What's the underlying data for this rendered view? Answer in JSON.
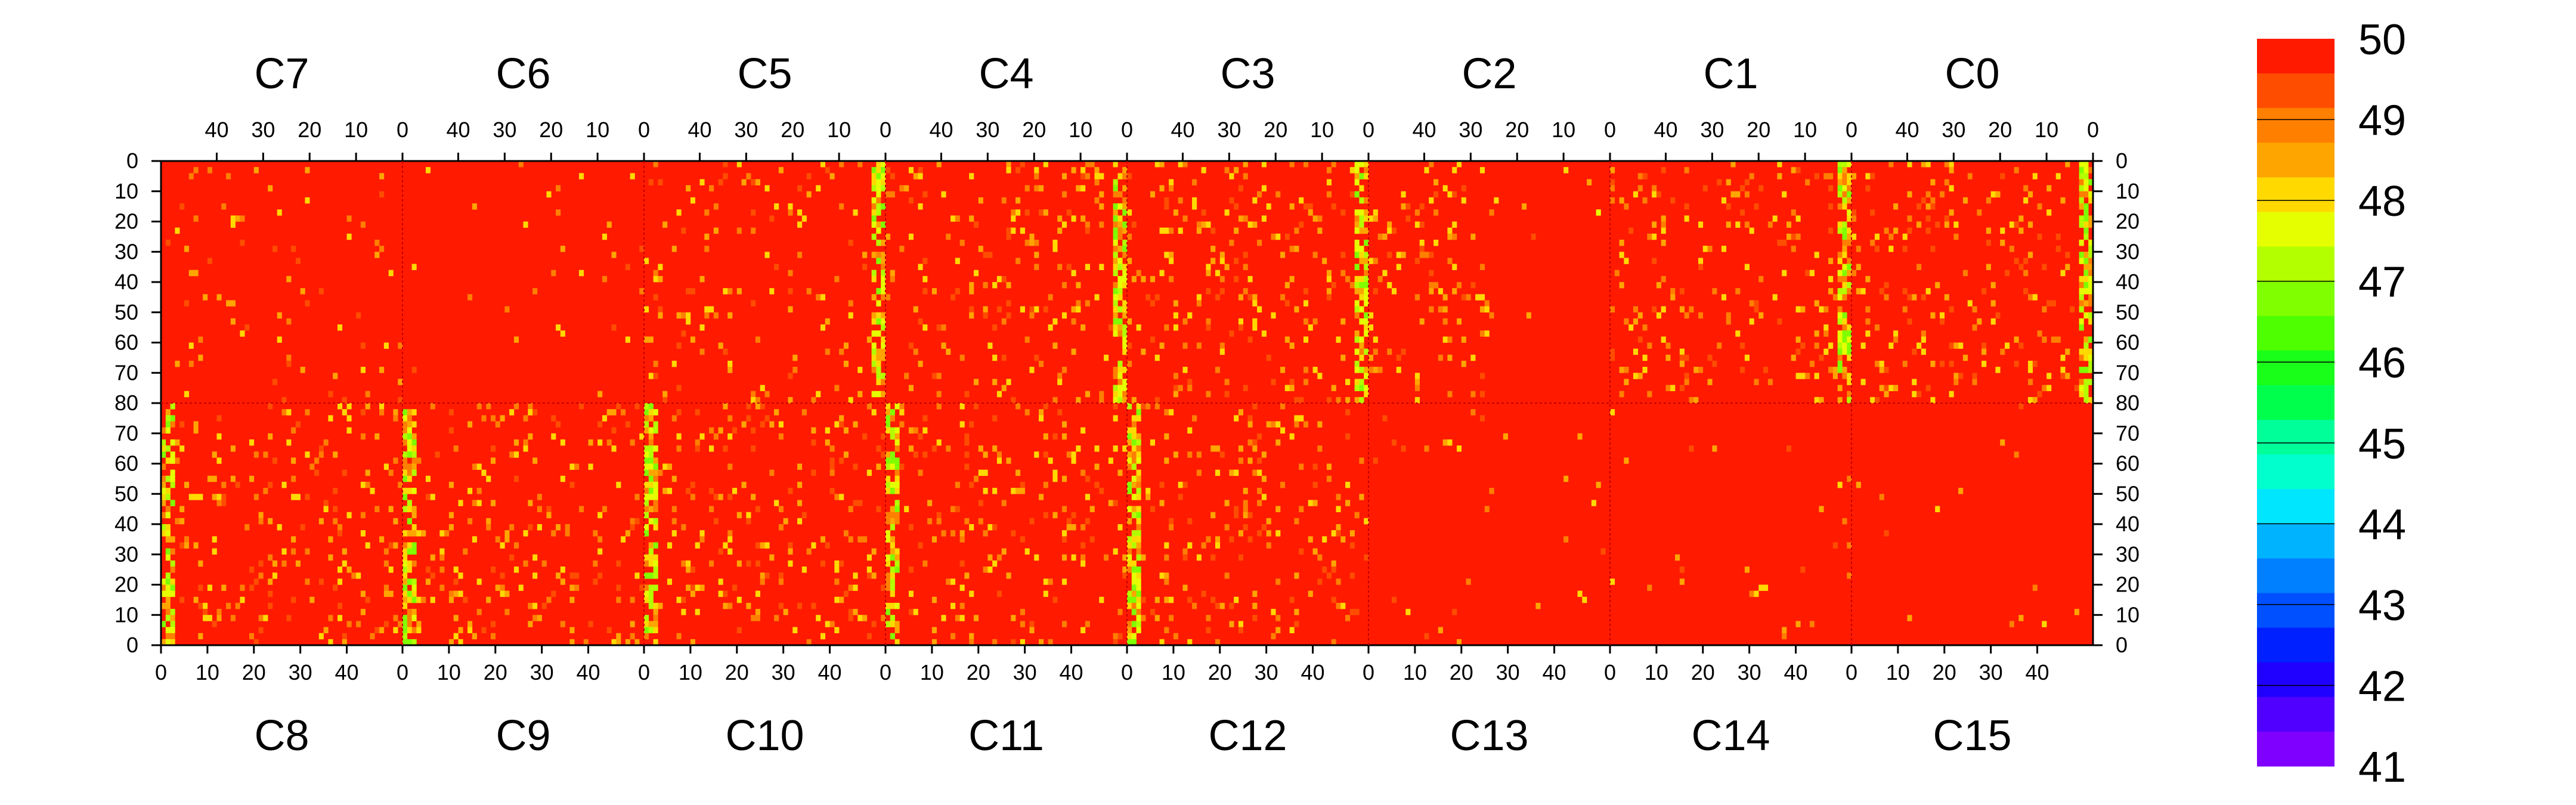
{
  "chart_data": {
    "type": "heatmap",
    "title": "",
    "xlabel": "",
    "ylabel": "",
    "zlim": [
      41,
      50
    ],
    "palette": {
      "labels": [
        "50",
        "49",
        "48",
        "47",
        "46",
        "45",
        "44",
        "43",
        "42",
        "41"
      ],
      "colors": [
        "#ff1a00",
        "#ff4d00",
        "#ff7f00",
        "#ffa500",
        "#ffd900",
        "#e6ff00",
        "#b3ff00",
        "#80ff00",
        "#4dff00",
        "#1aff1a",
        "#00ff4d",
        "#00ff99",
        "#00ffcc",
        "#00e6ff",
        "#00b3ff",
        "#0080ff",
        "#0050ff",
        "#0020ff",
        "#2000ff",
        "#5000ff",
        "#8000ff"
      ]
    },
    "chips": {
      "top": [
        "C7",
        "C6",
        "C5",
        "C4",
        "C3",
        "C2",
        "C1",
        "C0"
      ],
      "bottom": [
        "C8",
        "C9",
        "C10",
        "C11",
        "C12",
        "C13",
        "C14",
        "C15"
      ]
    },
    "chip_columns": 52,
    "chip_rows": 80,
    "axis_ticks": {
      "top_x": [
        "40",
        "30",
        "20",
        "10",
        "0"
      ],
      "bottom_x": [
        "0",
        "10",
        "20",
        "30",
        "40"
      ],
      "left_y": [
        "0",
        "10",
        "20",
        "30",
        "40",
        "50",
        "60",
        "70",
        "80",
        "70",
        "60",
        "50",
        "40",
        "30",
        "20",
        "10",
        "0"
      ],
      "right_y": [
        "0",
        "10",
        "20",
        "30",
        "40",
        "50",
        "60",
        "70",
        "80",
        "70",
        "60",
        "50",
        "40",
        "30",
        "20",
        "10",
        "0"
      ]
    },
    "value_distribution": {
      "background": 50,
      "chip_noise_level": [
        0.17,
        0.17,
        0.17,
        0.17,
        0.17,
        0.1,
        0.02,
        0.05,
        0.17,
        0.17,
        0.17,
        0.17,
        0.17,
        0.04,
        0.015,
        0.02
      ],
      "hot_stripe_values": [
        49,
        48,
        47
      ]
    }
  },
  "colors": {
    "background": "#ffffff",
    "axis": "#000000",
    "base": "#ff1a00"
  }
}
